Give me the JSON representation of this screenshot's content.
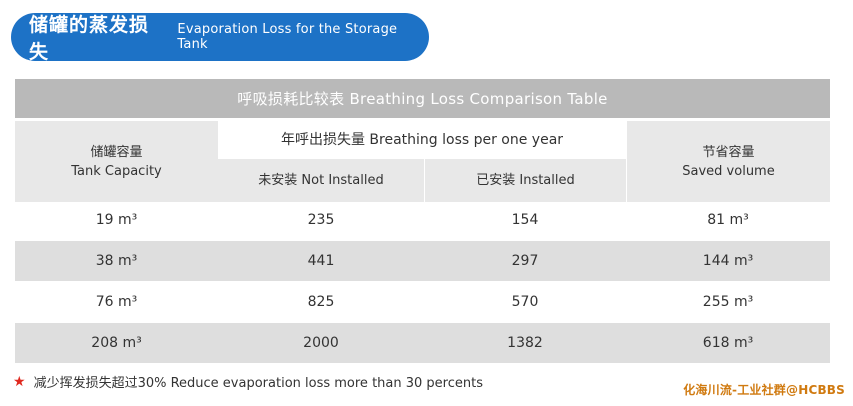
{
  "header": {
    "title_zh": "储罐的蒸发损失",
    "title_en": "Evaporation Loss for the Storage Tank"
  },
  "table": {
    "title": "呼吸损耗比较表 Breathing Loss Comparison Table",
    "col_capacity_zh": "储罐容量",
    "col_capacity_en": "Tank Capacity",
    "group_header": "年呼出损失量 Breathing loss per one year",
    "col_not_installed": "未安装 Not Installed",
    "col_installed": "已安装 Installed",
    "col_saved_zh": "节省容量",
    "col_saved_en": "Saved volume",
    "rows": [
      {
        "capacity": "19 m³",
        "not_installed": "235",
        "installed": "154",
        "saved": "81 m³"
      },
      {
        "capacity": "38 m³",
        "not_installed": "441",
        "installed": "297",
        "saved": "144 m³"
      },
      {
        "capacity": "76 m³",
        "not_installed": "825",
        "installed": "570",
        "saved": "255 m³"
      },
      {
        "capacity": "208 m³",
        "not_installed": "2000",
        "installed": "1382",
        "saved": "618 m³"
      }
    ]
  },
  "footnote": {
    "star": "★",
    "text": "减少挥发损失超过30% Reduce evaporation loss more than 30 percents"
  },
  "watermark": "化海川流-工业社群@HCBBS",
  "colors": {
    "accent": "#1d72c6",
    "star": "#e0291f",
    "watermark": "#d07a10"
  }
}
